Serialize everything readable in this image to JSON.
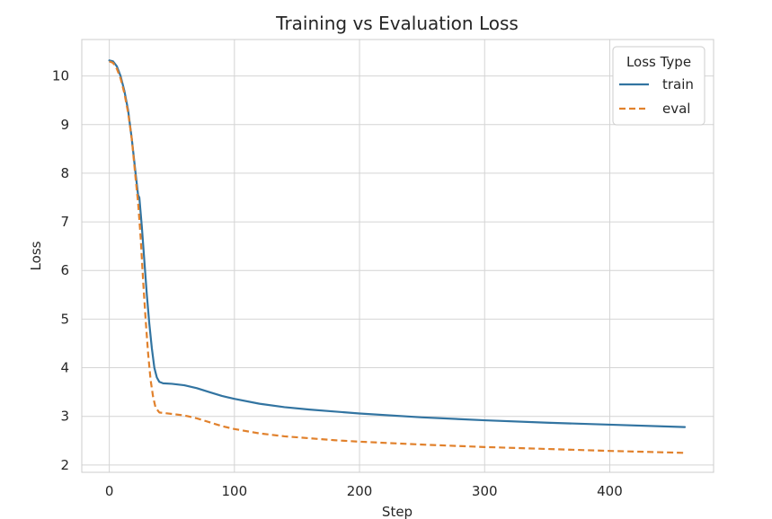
{
  "chart_data": {
    "type": "line",
    "title": "Training vs Evaluation Loss",
    "xlabel": "Step",
    "ylabel": "Loss",
    "xlim": [
      -22,
      483
    ],
    "ylim": [
      1.85,
      10.75
    ],
    "xticks": [
      0,
      100,
      200,
      300,
      400
    ],
    "yticks": [
      2,
      3,
      4,
      5,
      6,
      7,
      8,
      9,
      10
    ],
    "grid": true,
    "legend": {
      "title": "Loss Type",
      "placement": "top-right"
    },
    "series": [
      {
        "name": "train",
        "color": "#3274a1",
        "style": "solid",
        "points": [
          [
            0,
            10.32
          ],
          [
            3,
            10.3
          ],
          [
            6,
            10.2
          ],
          [
            9,
            10.0
          ],
          [
            12,
            9.7
          ],
          [
            15,
            9.3
          ],
          [
            18,
            8.7
          ],
          [
            21,
            8.0
          ],
          [
            23,
            7.55
          ],
          [
            24,
            7.5
          ],
          [
            26,
            6.9
          ],
          [
            28,
            6.2
          ],
          [
            30,
            5.5
          ],
          [
            32,
            4.9
          ],
          [
            34,
            4.4
          ],
          [
            36,
            4.0
          ],
          [
            38,
            3.8
          ],
          [
            40,
            3.71
          ],
          [
            43,
            3.68
          ],
          [
            50,
            3.67
          ],
          [
            60,
            3.64
          ],
          [
            70,
            3.58
          ],
          [
            80,
            3.5
          ],
          [
            90,
            3.42
          ],
          [
            100,
            3.36
          ],
          [
            120,
            3.26
          ],
          [
            140,
            3.19
          ],
          [
            160,
            3.14
          ],
          [
            180,
            3.1
          ],
          [
            200,
            3.06
          ],
          [
            250,
            2.98
          ],
          [
            300,
            2.92
          ],
          [
            350,
            2.87
          ],
          [
            400,
            2.83
          ],
          [
            460,
            2.78
          ]
        ]
      },
      {
        "name": "eval",
        "color": "#e1812c",
        "style": "dashed",
        "points": [
          [
            0,
            10.3
          ],
          [
            3,
            10.27
          ],
          [
            6,
            10.15
          ],
          [
            9,
            9.95
          ],
          [
            12,
            9.65
          ],
          [
            15,
            9.25
          ],
          [
            18,
            8.7
          ],
          [
            21,
            7.9
          ],
          [
            23,
            7.4
          ],
          [
            25,
            6.7
          ],
          [
            27,
            5.8
          ],
          [
            29,
            5.0
          ],
          [
            31,
            4.3
          ],
          [
            33,
            3.75
          ],
          [
            35,
            3.4
          ],
          [
            37,
            3.18
          ],
          [
            40,
            3.08
          ],
          [
            50,
            3.05
          ],
          [
            60,
            3.02
          ],
          [
            70,
            2.96
          ],
          [
            80,
            2.88
          ],
          [
            90,
            2.8
          ],
          [
            100,
            2.74
          ],
          [
            120,
            2.65
          ],
          [
            140,
            2.59
          ],
          [
            160,
            2.55
          ],
          [
            180,
            2.51
          ],
          [
            200,
            2.48
          ],
          [
            250,
            2.42
          ],
          [
            300,
            2.37
          ],
          [
            350,
            2.33
          ],
          [
            400,
            2.29
          ],
          [
            460,
            2.25
          ]
        ]
      }
    ]
  }
}
